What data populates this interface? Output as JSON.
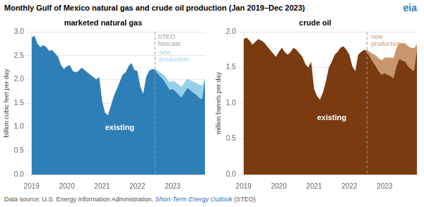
{
  "title": "Monthly Gulf of Mexico natural gas and crude oil production (Jan 2019–Dec 2023)",
  "source": [
    "Data source: U.S. Energy Information Administration, ",
    "Short-Term Energy Outlook",
    " (STEO)"
  ],
  "logo": {
    "text": "eia",
    "color": "#2e7eb8"
  },
  "chart_data": [
    {
      "type": "area",
      "stacked": true,
      "title": "marketed natural gas",
      "ylabel": "billion cubic feet per day",
      "categories": [
        "2019",
        null,
        null,
        null,
        null,
        null,
        null,
        null,
        null,
        null,
        null,
        null,
        "2020",
        null,
        null,
        null,
        null,
        null,
        null,
        null,
        null,
        null,
        null,
        null,
        "2021",
        null,
        null,
        null,
        null,
        null,
        null,
        null,
        null,
        null,
        null,
        null,
        "2022",
        null,
        null,
        null,
        null,
        null,
        null,
        null,
        null,
        null,
        null,
        null,
        "2023",
        null,
        null,
        null,
        null,
        null,
        null,
        null,
        null,
        null,
        null,
        null
      ],
      "series": [
        {
          "name": "existing",
          "color": "#2e7eb8",
          "values": [
            2.88,
            2.92,
            2.75,
            2.68,
            2.72,
            2.68,
            2.6,
            2.62,
            2.55,
            2.48,
            2.3,
            2.22,
            2.28,
            2.3,
            2.18,
            2.15,
            2.18,
            2.25,
            2.2,
            2.15,
            2.1,
            2.05,
            2.0,
            2.05,
            1.55,
            1.3,
            1.25,
            1.45,
            1.65,
            1.8,
            1.95,
            2.1,
            2.15,
            2.28,
            2.35,
            2.2,
            2.18,
            1.85,
            1.7,
            2.05,
            2.18,
            2.22,
            2.2,
            2.12,
            2.05,
            1.98,
            1.88,
            1.78,
            1.8,
            1.75,
            1.68,
            1.62,
            1.72,
            1.82,
            1.78,
            1.72,
            1.68,
            1.62,
            1.58,
            1.98
          ]
        },
        {
          "name": "new\nproduction",
          "color": "#96d0e8",
          "values": [
            0.0,
            0.0,
            0.0,
            0.0,
            0.0,
            0.0,
            0.0,
            0.0,
            0.0,
            0.0,
            0.0,
            0.0,
            0.0,
            0.0,
            0.0,
            0.0,
            0.0,
            0.0,
            0.0,
            0.0,
            0.0,
            0.0,
            0.0,
            0.0,
            0.0,
            0.0,
            0.0,
            0.0,
            0.0,
            0.0,
            0.0,
            0.0,
            0.0,
            0.0,
            0.0,
            0.0,
            0.0,
            0.0,
            0.0,
            0.0,
            0.0,
            0.0,
            0.03,
            0.06,
            0.09,
            0.12,
            0.14,
            0.16,
            0.17,
            0.19,
            0.21,
            0.23,
            0.21,
            0.19,
            0.21,
            0.23,
            0.25,
            0.27,
            0.29,
            0.04
          ]
        }
      ],
      "ylim": [
        0,
        3.0
      ],
      "yticks": [
        {
          "value": 0,
          "label": "0.0"
        },
        0.5,
        {
          "value": 1,
          "label": "1.0"
        },
        1.5,
        {
          "value": 2,
          "label": "2.0"
        },
        2.5,
        {
          "value": 3,
          "label": "3.0"
        }
      ],
      "grid": "y",
      "vline": {
        "index": 42,
        "label": "STEO\nforecast",
        "color": "#999999",
        "line_style": "dashed"
      }
    },
    {
      "type": "area",
      "stacked": true,
      "title": "crude oil",
      "ylabel": "million barrels per day",
      "categories": [
        "2019",
        null,
        null,
        null,
        null,
        null,
        null,
        null,
        null,
        null,
        null,
        null,
        "2020",
        null,
        null,
        null,
        null,
        null,
        null,
        null,
        null,
        null,
        null,
        null,
        "2021",
        null,
        null,
        null,
        null,
        null,
        null,
        null,
        null,
        null,
        null,
        null,
        "2022",
        null,
        null,
        null,
        null,
        null,
        null,
        null,
        null,
        null,
        null,
        null,
        "2023",
        null,
        null,
        null,
        null,
        null,
        null,
        null,
        null,
        null,
        null,
        null
      ],
      "series": [
        {
          "name": "existing",
          "color": "#7a3b10",
          "values": [
            1.9,
            1.92,
            1.88,
            1.82,
            1.86,
            1.9,
            1.88,
            1.85,
            1.8,
            1.75,
            1.7,
            1.65,
            1.72,
            1.78,
            1.72,
            1.68,
            1.72,
            1.78,
            1.75,
            1.7,
            1.65,
            1.55,
            1.5,
            1.58,
            1.2,
            1.1,
            1.05,
            1.15,
            1.3,
            1.5,
            1.58,
            1.68,
            1.72,
            1.78,
            1.8,
            1.75,
            1.68,
            1.52,
            1.45,
            1.68,
            1.72,
            1.75,
            1.72,
            1.65,
            1.58,
            1.52,
            1.45,
            1.4,
            1.42,
            1.4,
            1.38,
            1.35,
            1.52,
            1.62,
            1.6,
            1.58,
            1.52,
            1.48,
            1.45,
            1.75
          ]
        },
        {
          "name": "new\nproduction",
          "color": "#c8956c",
          "values": [
            0.0,
            0.0,
            0.0,
            0.0,
            0.0,
            0.0,
            0.0,
            0.0,
            0.0,
            0.0,
            0.0,
            0.0,
            0.0,
            0.0,
            0.0,
            0.0,
            0.0,
            0.0,
            0.0,
            0.0,
            0.0,
            0.0,
            0.0,
            0.0,
            0.0,
            0.0,
            0.0,
            0.0,
            0.0,
            0.0,
            0.0,
            0.0,
            0.0,
            0.0,
            0.0,
            0.0,
            0.0,
            0.0,
            0.0,
            0.0,
            0.0,
            0.0,
            0.03,
            0.07,
            0.11,
            0.15,
            0.18,
            0.2,
            0.22,
            0.24,
            0.26,
            0.28,
            0.25,
            0.22,
            0.24,
            0.26,
            0.28,
            0.3,
            0.32,
            0.08
          ]
        }
      ],
      "ylim": [
        0,
        2.0
      ],
      "yticks": [
        {
          "value": 0,
          "label": "0.0"
        },
        0.5,
        {
          "value": 1,
          "label": "1.0"
        },
        1.5,
        {
          "value": 2,
          "label": "2.0"
        }
      ],
      "grid": "y",
      "vline": {
        "index": 42,
        "color": "#999999",
        "line_style": "dashed"
      }
    }
  ]
}
